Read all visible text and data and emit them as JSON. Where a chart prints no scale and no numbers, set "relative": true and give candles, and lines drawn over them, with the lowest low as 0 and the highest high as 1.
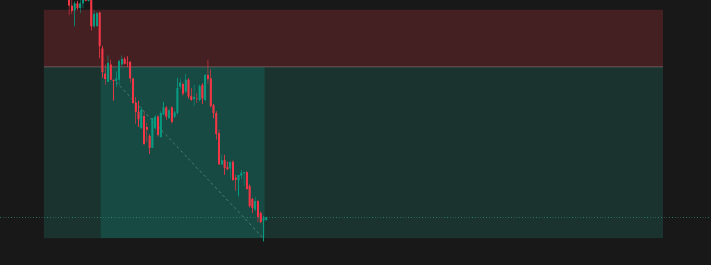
{
  "chart_data": {
    "type": "candlestick",
    "relative": true,
    "legend": false,
    "categories": [
      null,
      null,
      null,
      null,
      null,
      null,
      null,
      null,
      null,
      null,
      null,
      null,
      null,
      null,
      null,
      null,
      null,
      null,
      null,
      null,
      null,
      null,
      null,
      null,
      null,
      null,
      null,
      null,
      null,
      null,
      null,
      null,
      null,
      null,
      null,
      null,
      null,
      null,
      null,
      null,
      null,
      null,
      null,
      null,
      null,
      null,
      null,
      null,
      null,
      null,
      null,
      null,
      null,
      null,
      null,
      null,
      null,
      null,
      null,
      null,
      null,
      null,
      null,
      null,
      null,
      null,
      null,
      null,
      null,
      null,
      null,
      null
    ],
    "ohlc": [
      [
        1,
        1,
        0.937,
        0.977
      ],
      [
        0.977,
        1,
        0.943,
        0.954
      ],
      [
        0.957,
        0.994,
        0.891,
        0.986
      ],
      [
        0.986,
        0.997,
        0.96,
        0.966
      ],
      [
        0.966,
        1,
        0.945,
        0.986
      ],
      [
        0.986,
        1,
        0.966,
        1
      ],
      [
        1,
        1,
        0.994,
        0.997
      ],
      [
        0.997,
        1,
        0.994,
        1
      ],
      [
        1,
        1,
        0.874,
        0.891
      ],
      [
        0.891,
        0.957,
        0.885,
        0.943
      ],
      [
        0.891,
        0.951,
        0.891,
        0.945
      ],
      [
        0.948,
        0.951,
        0.759,
        0.81
      ],
      [
        0.799,
        0.81,
        0.678,
        0.701
      ],
      [
        0.695,
        0.733,
        0.649,
        0.672
      ],
      [
        0.661,
        0.77,
        0.661,
        0.739
      ],
      [
        0.733,
        0.753,
        0.667,
        0.67
      ],
      [
        0.67,
        0.67,
        0.583,
        0.664
      ],
      [
        0.664,
        0.704,
        0.641,
        0.675
      ],
      [
        0.67,
        0.753,
        0.647,
        0.747
      ],
      [
        0.733,
        0.77,
        0.721,
        0.756
      ],
      [
        0.756,
        0.764,
        0.733,
        0.736
      ],
      [
        0.741,
        0.767,
        0.721,
        0.739
      ],
      [
        0.744,
        0.747,
        0.658,
        0.675
      ],
      [
        0.675,
        0.678,
        0.572,
        0.572
      ],
      [
        0.575,
        0.598,
        0.486,
        0.537
      ],
      [
        0.537,
        0.583,
        0.474,
        0.506
      ],
      [
        0.468,
        0.555,
        0.468,
        0.546
      ],
      [
        0.52,
        0.54,
        0.402,
        0.402
      ],
      [
        0.474,
        0.491,
        0.411,
        0.463
      ],
      [
        0.437,
        0.445,
        0.362,
        0.388
      ],
      [
        0.388,
        0.511,
        0.388,
        0.511
      ],
      [
        0.468,
        0.523,
        0.463,
        0.517
      ],
      [
        0.517,
        0.523,
        0.434,
        0.44
      ],
      [
        0.431,
        0.54,
        0.431,
        0.532
      ],
      [
        0.526,
        0.578,
        0.523,
        0.555
      ],
      [
        0.555,
        0.56,
        0.503,
        0.517
      ],
      [
        0.511,
        0.549,
        0.506,
        0.543
      ],
      [
        0.555,
        0.56,
        0.489,
        0.494
      ],
      [
        0.517,
        0.54,
        0.511,
        0.534
      ],
      [
        0.532,
        0.678,
        0.526,
        0.635
      ],
      [
        0.641,
        0.675,
        0.632,
        0.658
      ],
      [
        0.652,
        0.661,
        0.603,
        0.612
      ],
      [
        0.621,
        0.693,
        0.615,
        0.67
      ],
      [
        0.67,
        0.675,
        0.592,
        0.601
      ],
      [
        0.603,
        0.635,
        0.583,
        0.586
      ],
      [
        0.589,
        0.649,
        0.56,
        0.598
      ],
      [
        0.592,
        0.615,
        0.572,
        0.589
      ],
      [
        0.586,
        0.649,
        0.58,
        0.644
      ],
      [
        0.647,
        0.655,
        0.569,
        0.592
      ],
      [
        0.586,
        0.693,
        0.58,
        0.69
      ],
      [
        0.69,
        0.753,
        0.652,
        0.672
      ],
      [
        0.675,
        0.713,
        0.555,
        0.56
      ],
      [
        0.563,
        0.569,
        0.511,
        0.532
      ],
      [
        0.532,
        0.54,
        0.422,
        0.445
      ],
      [
        0.448,
        0.463,
        0.316,
        0.319
      ],
      [
        0.319,
        0.359,
        0.316,
        0.336
      ],
      [
        0.336,
        0.359,
        0.276,
        0.305
      ],
      [
        0.307,
        0.33,
        0.296,
        0.299
      ],
      [
        0.302,
        0.33,
        0.261,
        0.33
      ],
      [
        0.33,
        0.336,
        0.253,
        0.253
      ],
      [
        0.264,
        0.276,
        0.21,
        0.256
      ],
      [
        0.253,
        0.276,
        0.187,
        0.276
      ],
      [
        0.273,
        0.296,
        0.259,
        0.284
      ],
      [
        0.282,
        0.287,
        0.23,
        0.287
      ],
      [
        0.287,
        0.293,
        0.216,
        0.216
      ],
      [
        0.23,
        0.236,
        0.141,
        0.147
      ],
      [
        0.175,
        0.181,
        0.118,
        0.138
      ],
      [
        0.132,
        0.184,
        0.126,
        0.167
      ],
      [
        0.167,
        0.172,
        0.08,
        0.101
      ],
      [
        0.118,
        0.124,
        0.075,
        0.08
      ],
      [
        0.086,
        0.106,
        0,
        0.095
      ],
      [
        0.089,
        0.101,
        0.086,
        0.101
      ]
    ],
    "series": [
      {
        "type": "line",
        "values": [
          null,
          null,
          null,
          null,
          null,
          null,
          null,
          null,
          null,
          null,
          null,
          null,
          null,
          null,
          null,
          null,
          null,
          0.661,
          null,
          null,
          null,
          null,
          null,
          null,
          null,
          null,
          null,
          null,
          null,
          null,
          null,
          null,
          null,
          null,
          null,
          null,
          null,
          null,
          null,
          null,
          null,
          null,
          null,
          null,
          null,
          null,
          null,
          null,
          null,
          null,
          null,
          null,
          null,
          null,
          null,
          null,
          null,
          null,
          null,
          null,
          null,
          null,
          null,
          null,
          null,
          null,
          null,
          null,
          null,
          null,
          0.014,
          null
        ],
        "color": "#6e8f84",
        "line_style": "dashed"
      }
    ],
    "colors": [
      "#f23645",
      "#f23645",
      "#089981",
      "#f23645",
      "#089981",
      "#089981",
      "#f23645",
      "#089981",
      "#f23645",
      "#089981",
      "#089981",
      "#f23645",
      "#f23645",
      "#f23645",
      "#089981",
      "#f23645",
      "#f23645",
      "#089981",
      "#089981",
      "#089981",
      "#f23645",
      "#f23645",
      "#f23645",
      "#f23645",
      "#f23645",
      "#f23645",
      "#089981",
      "#f23645",
      "#f23645",
      "#f23645",
      "#089981",
      "#089981",
      "#f23645",
      "#089981",
      "#089981",
      "#f23645",
      "#089981",
      "#f23645",
      "#089981",
      "#089981",
      "#089981",
      "#f23645",
      "#089981",
      "#f23645",
      "#f23645",
      "#089981",
      "#f23645",
      "#089981",
      "#f23645",
      "#089981",
      "#f23645",
      "#f23645",
      "#f23645",
      "#f23645",
      "#f23645",
      "#089981",
      "#f23645",
      "#f23645",
      "#089981",
      "#f23645",
      "#f23645",
      "#089981",
      "#089981",
      "#089981",
      "#f23645",
      "#f23645",
      "#f23645",
      "#089981",
      "#f23645",
      "#f23645",
      "#089981",
      "#089981"
    ],
    "bands": [
      {
        "axis": "y",
        "from": 0.014,
        "to": 0.724,
        "color": "#1b332e"
      },
      {
        "axis": "y",
        "from": 0.724,
        "to": 0.96,
        "color": "#452023"
      }
    ],
    "ref_lines": [
      {
        "axis": "y",
        "value": 0.724,
        "color": "#8c8080",
        "line_style": "solid"
      },
      {
        "axis": "y",
        "value": 0.101,
        "color": "#2f8a78",
        "line_style": "dotted"
      }
    ]
  }
}
